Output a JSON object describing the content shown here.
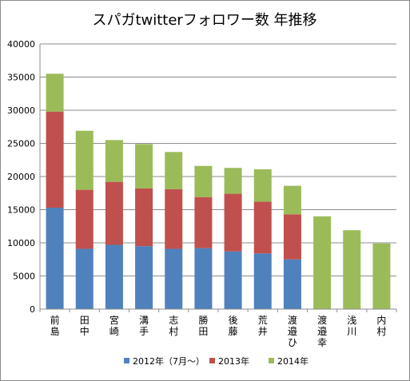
{
  "chart_data": {
    "type": "bar",
    "stacked": true,
    "title": "スパガtwitterフォロワー数 年推移",
    "categories": [
      "前島",
      "田中",
      "宮崎",
      "溝手",
      "志村",
      "勝田",
      "後藤",
      "荒井",
      "渡邉ひ",
      "渡邉幸",
      "浅川",
      "内村"
    ],
    "series": [
      {
        "name": "2012年（7月～）",
        "color": "#4F81BD",
        "values": [
          15300,
          9100,
          9700,
          9500,
          9100,
          9200,
          8700,
          8400,
          7500,
          0,
          0,
          0
        ]
      },
      {
        "name": "2013年",
        "color": "#C0504D",
        "values": [
          14500,
          8900,
          9500,
          8700,
          9000,
          7700,
          8700,
          7800,
          6800,
          0,
          0,
          0
        ]
      },
      {
        "name": "2014年",
        "color": "#9BBB59",
        "values": [
          5700,
          8900,
          6300,
          6700,
          5600,
          4700,
          3900,
          4900,
          4300,
          14000,
          11900,
          9900
        ]
      }
    ],
    "ylim": [
      0,
      40000
    ],
    "yticks": [
      0,
      5000,
      10000,
      15000,
      20000,
      25000,
      30000,
      35000,
      40000
    ],
    "grid": true,
    "legend_position": "bottom",
    "xlabel": "",
    "ylabel": ""
  }
}
